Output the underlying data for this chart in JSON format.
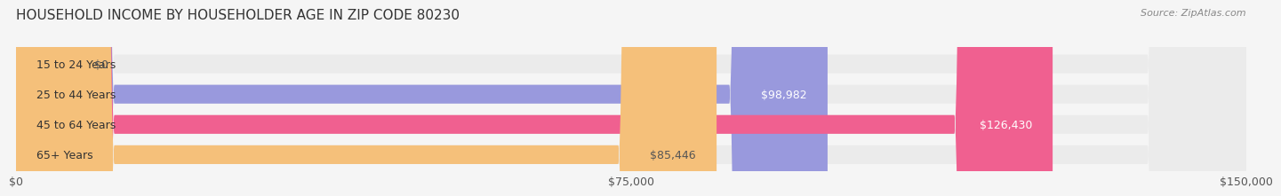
{
  "title": "HOUSEHOLD INCOME BY HOUSEHOLDER AGE IN ZIP CODE 80230",
  "source": "Source: ZipAtlas.com",
  "categories": [
    "15 to 24 Years",
    "25 to 44 Years",
    "45 to 64 Years",
    "65+ Years"
  ],
  "values": [
    0,
    98982,
    126430,
    85446
  ],
  "bar_colors": [
    "#7ecece",
    "#9999dd",
    "#f06090",
    "#f5c07a"
  ],
  "label_colors": [
    "#555555",
    "#ffffff",
    "#ffffff",
    "#555555"
  ],
  "max_value": 150000,
  "xticks": [
    0,
    75000,
    150000
  ],
  "xtick_labels": [
    "$0",
    "$75,000",
    "$150,000"
  ],
  "value_labels": [
    "$0",
    "$98,982",
    "$126,430",
    "$85,446"
  ],
  "bg_color": "#f5f5f5",
  "bar_bg_color": "#ebebeb",
  "title_fontsize": 11,
  "source_fontsize": 8,
  "tick_fontsize": 9,
  "bar_label_fontsize": 9,
  "value_label_fontsize": 9
}
